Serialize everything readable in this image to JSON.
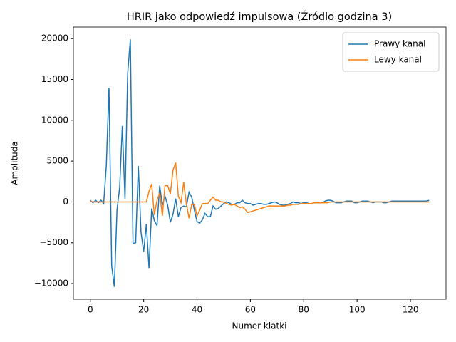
{
  "chart_data": {
    "type": "line",
    "title": "HRIR jako odpowiedź impulsowa (Źródlo godzina 3)",
    "x_label": "Numer klatki",
    "y_label": "Amplituda",
    "x": [
      0,
      1,
      2,
      3,
      4,
      5,
      6,
      7,
      8,
      9,
      10,
      11,
      12,
      13,
      14,
      15,
      16,
      17,
      18,
      19,
      20,
      21,
      22,
      23,
      24,
      25,
      26,
      27,
      28,
      29,
      30,
      31,
      32,
      33,
      34,
      35,
      36,
      37,
      38,
      39,
      40,
      41,
      42,
      43,
      44,
      45,
      46,
      47,
      48,
      49,
      50,
      51,
      52,
      53,
      54,
      55,
      56,
      57,
      58,
      59,
      60,
      61,
      62,
      63,
      64,
      65,
      66,
      67,
      68,
      69,
      70,
      71,
      72,
      73,
      74,
      75,
      76,
      77,
      78,
      79,
      80,
      81,
      82,
      83,
      84,
      85,
      86,
      87,
      88,
      89,
      90,
      91,
      92,
      93,
      94,
      95,
      96,
      97,
      98,
      99,
      100,
      101,
      102,
      103,
      104,
      105,
      106,
      107,
      108,
      109,
      110,
      111,
      112,
      113,
      114,
      115,
      116,
      117,
      118,
      119,
      120,
      121,
      122,
      123,
      124,
      125,
      126,
      127
    ],
    "series": [
      {
        "name": "Prawy kanal",
        "color": "#1f77b4",
        "values": [
          200,
          -100,
          200,
          -100,
          200,
          -200,
          4500,
          14000,
          -7800,
          -10400,
          -1000,
          1800,
          9300,
          300,
          15700,
          19900,
          -5100,
          -5000,
          4400,
          -3700,
          -6100,
          -2700,
          -8100,
          -800,
          -2300,
          -2900,
          2000,
          -400,
          700,
          -400,
          -2500,
          -1500,
          400,
          -1800,
          -700,
          -500,
          -600,
          1200,
          600,
          -1000,
          -2400,
          -2600,
          -2200,
          -1400,
          -1800,
          -1800,
          -500,
          -900,
          -800,
          -500,
          -200,
          0,
          -100,
          -300,
          -300,
          -100,
          -100,
          200,
          -100,
          -200,
          -200,
          -400,
          -300,
          -200,
          -200,
          -300,
          -300,
          -200,
          -100,
          0,
          -100,
          -300,
          -400,
          -400,
          -300,
          -200,
          0,
          -100,
          -100,
          -200,
          -100,
          -100,
          -200,
          -200,
          -100,
          -100,
          -100,
          -100,
          100,
          200,
          200,
          100,
          -100,
          -100,
          -100,
          0,
          100,
          100,
          100,
          -100,
          -100,
          0,
          100,
          100,
          100,
          0,
          -100,
          0,
          0,
          0,
          -100,
          -100,
          0,
          100,
          100,
          100,
          100,
          100,
          100,
          100,
          100,
          100,
          100,
          100,
          100,
          100,
          100,
          200
        ]
      },
      {
        "name": "Lewy kanal",
        "color": "#ff7f0e",
        "values": [
          100,
          0,
          0,
          0,
          0,
          0,
          0,
          0,
          0,
          0,
          0,
          0,
          0,
          0,
          0,
          0,
          0,
          0,
          0,
          0,
          0,
          0,
          1300,
          2200,
          -1600,
          200,
          1100,
          -1700,
          2000,
          2000,
          1000,
          3900,
          4800,
          700,
          -100,
          2400,
          -200,
          -2000,
          -300,
          -300,
          -1700,
          -1000,
          -200,
          -200,
          -200,
          200,
          600,
          200,
          200,
          0,
          0,
          -200,
          -300,
          -400,
          -300,
          -500,
          -700,
          -600,
          -900,
          -1300,
          -1200,
          -1100,
          -1000,
          -900,
          -800,
          -700,
          -600,
          -500,
          -500,
          -500,
          -500,
          -500,
          -500,
          -500,
          -400,
          -400,
          -300,
          -300,
          -300,
          -200,
          -200,
          -200,
          -200,
          -200,
          -100,
          -100,
          -100,
          -100,
          -100,
          -100,
          0,
          0,
          0,
          0,
          0,
          0,
          0,
          0,
          0,
          0,
          0,
          0,
          0,
          0,
          0,
          0,
          0,
          0,
          0,
          0,
          0,
          0,
          0,
          0,
          0,
          0,
          0,
          0,
          0,
          0,
          0,
          0,
          0,
          0,
          0,
          0,
          0,
          0
        ]
      }
    ],
    "xlim": [
      -6.35,
      133.35
    ],
    "ylim": [
      -11915,
      21415
    ],
    "xticks": [
      0,
      20,
      40,
      60,
      80,
      100,
      120
    ],
    "yticks": [
      {
        "value": -10000,
        "label": "−10000"
      },
      {
        "value": -5000,
        "label": "−5000"
      },
      0,
      5000,
      10000,
      15000,
      20000
    ],
    "legend": "upper right",
    "grid": false
  }
}
